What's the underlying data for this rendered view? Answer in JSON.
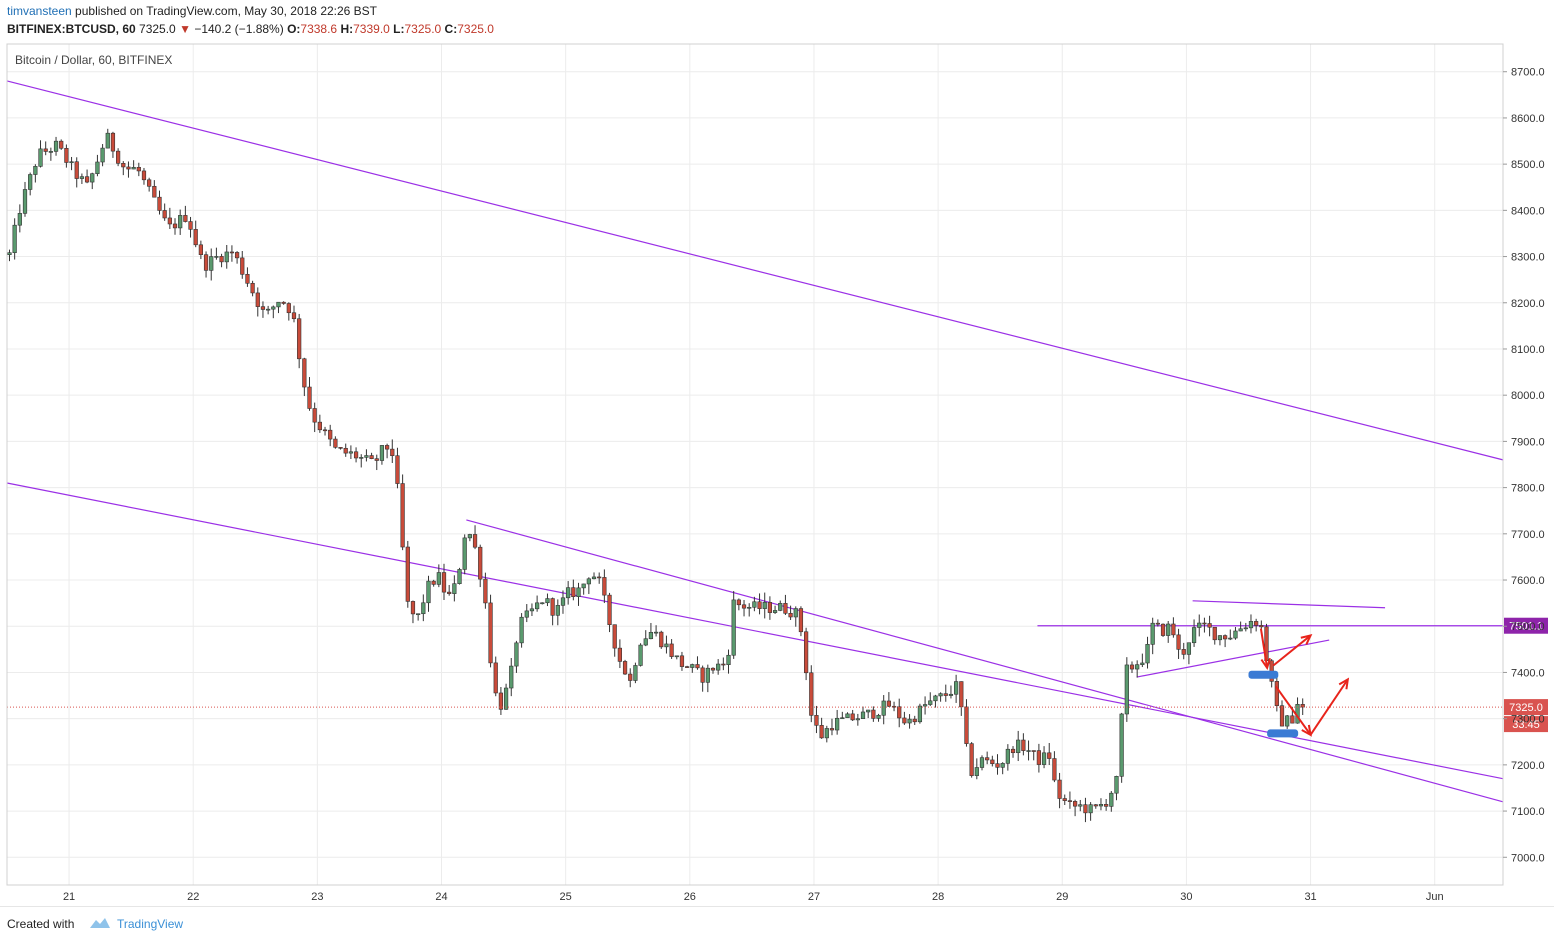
{
  "header": {
    "author": "timvansteen",
    "published_text": "published on TradingView.com, May 30, 2018 22:26 BST",
    "symbol": "BITFINEX:BTCUSD, 60",
    "last": "7325.0",
    "change_arrow": "▼",
    "change": "−140.2 (−1.88%)",
    "o_label": "O:",
    "o": "7338.6",
    "h_label": "H:",
    "h": "7339.0",
    "l_label": "L:",
    "l": "7325.0",
    "c_label": "C:",
    "c": "7325.0"
  },
  "footer": {
    "created_with": "Created with",
    "brand": "TradingView",
    "logo_icon": "tradingview-cloud-icon"
  },
  "colors": {
    "up": "#5a9a6e",
    "down": "#c94b3a",
    "trendline": "#9b30e6",
    "arrow": "#e8241b",
    "marker": "#3b7bd4",
    "price_tag": "#d9534f",
    "level_tag": "#8e24aa"
  },
  "chart_data": {
    "type": "candlestick",
    "title": "Bitcoin / Dollar, 60, BITFINEX",
    "xlabel": "",
    "ylabel": "",
    "ylim": [
      6940,
      8760
    ],
    "y_ticks": [
      7000,
      7100,
      7200,
      7300,
      7400,
      7500,
      7600,
      7700,
      7800,
      7900,
      8000,
      8100,
      8200,
      8300,
      8400,
      8500,
      8600,
      8700
    ],
    "y_tick_labels": [
      "7000.0",
      "7100.0",
      "7200.0",
      "7300.0",
      "7400.0",
      "7500.0",
      "7600.0",
      "7700.0",
      "7800.0",
      "7900.0",
      "8000.0",
      "8100.0",
      "8200.0",
      "8300.0",
      "8400.0",
      "8500.0",
      "8600.0",
      "8700.0"
    ],
    "x_range": [
      20.5,
      32.55
    ],
    "x_ticks": [
      21,
      22,
      23,
      24,
      25,
      26,
      27,
      28,
      29,
      30,
      31,
      32
    ],
    "x_tick_labels": [
      "21",
      "22",
      "23",
      "24",
      "25",
      "26",
      "27",
      "28",
      "29",
      "30",
      "31",
      "Jun"
    ],
    "grid": true,
    "last_price": 7325.0,
    "last_price_label": "7325.0",
    "countdown_label": "33:45",
    "level_price": 7501.1,
    "level_label": "7501.1",
    "anchors": [
      [
        20.5,
        8280
      ],
      [
        20.6,
        8400
      ],
      [
        20.75,
        8520
      ],
      [
        20.9,
        8540
      ],
      [
        21.05,
        8480
      ],
      [
        21.15,
        8450
      ],
      [
        21.3,
        8560
      ],
      [
        21.45,
        8490
      ],
      [
        21.55,
        8490
      ],
      [
        21.7,
        8410
      ],
      [
        21.8,
        8360
      ],
      [
        21.95,
        8390
      ],
      [
        22.08,
        8280
      ],
      [
        22.2,
        8300
      ],
      [
        22.32,
        8310
      ],
      [
        22.45,
        8240
      ],
      [
        22.58,
        8170
      ],
      [
        22.7,
        8210
      ],
      [
        22.8,
        8180
      ],
      [
        22.88,
        8040
      ],
      [
        22.95,
        7960
      ],
      [
        23.05,
        7920
      ],
      [
        23.15,
        7880
      ],
      [
        23.3,
        7870
      ],
      [
        23.45,
        7850
      ],
      [
        23.55,
        7890
      ],
      [
        23.62,
        7870
      ],
      [
        23.68,
        7690
      ],
      [
        23.72,
        7550
      ],
      [
        23.8,
        7510
      ],
      [
        23.88,
        7580
      ],
      [
        23.97,
        7610
      ],
      [
        24.05,
        7560
      ],
      [
        24.12,
        7590
      ],
      [
        24.2,
        7720
      ],
      [
        24.28,
        7660
      ],
      [
        24.35,
        7560
      ],
      [
        24.42,
        7360
      ],
      [
        24.48,
        7330
      ],
      [
        24.55,
        7380
      ],
      [
        24.62,
        7500
      ],
      [
        24.72,
        7530
      ],
      [
        24.82,
        7560
      ],
      [
        24.92,
        7530
      ],
      [
        25.02,
        7570
      ],
      [
        25.12,
        7580
      ],
      [
        25.2,
        7620
      ],
      [
        25.28,
        7590
      ],
      [
        25.35,
        7510
      ],
      [
        25.43,
        7430
      ],
      [
        25.52,
        7380
      ],
      [
        25.6,
        7470
      ],
      [
        25.7,
        7490
      ],
      [
        25.8,
        7460
      ],
      [
        25.92,
        7420
      ],
      [
        26.0,
        7410
      ],
      [
        26.1,
        7390
      ],
      [
        26.18,
        7410
      ],
      [
        26.3,
        7420
      ],
      [
        26.35,
        7550
      ],
      [
        26.5,
        7540
      ],
      [
        26.62,
        7540
      ],
      [
        26.75,
        7540
      ],
      [
        26.85,
        7530
      ],
      [
        26.92,
        7470
      ],
      [
        26.96,
        7320
      ],
      [
        27.05,
        7260
      ],
      [
        27.15,
        7290
      ],
      [
        27.3,
        7300
      ],
      [
        27.45,
        7310
      ],
      [
        27.6,
        7330
      ],
      [
        27.75,
        7290
      ],
      [
        27.9,
        7330
      ],
      [
        28.05,
        7350
      ],
      [
        28.15,
        7370
      ],
      [
        28.2,
        7300
      ],
      [
        28.25,
        7180
      ],
      [
        28.35,
        7210
      ],
      [
        28.5,
        7200
      ],
      [
        28.6,
        7240
      ],
      [
        28.7,
        7240
      ],
      [
        28.8,
        7210
      ],
      [
        28.9,
        7220
      ],
      [
        28.95,
        7140
      ],
      [
        29.05,
        7110
      ],
      [
        29.15,
        7110
      ],
      [
        29.25,
        7100
      ],
      [
        29.35,
        7120
      ],
      [
        29.45,
        7170
      ],
      [
        29.5,
        7400
      ],
      [
        29.6,
        7420
      ],
      [
        29.68,
        7440
      ],
      [
        29.72,
        7500
      ],
      [
        29.8,
        7490
      ],
      [
        29.88,
        7500
      ],
      [
        29.95,
        7430
      ],
      [
        30.05,
        7490
      ],
      [
        30.15,
        7500
      ],
      [
        30.25,
        7480
      ],
      [
        30.35,
        7480
      ],
      [
        30.45,
        7500
      ],
      [
        30.55,
        7515
      ],
      [
        30.62,
        7490
      ],
      [
        30.65,
        7420
      ],
      [
        30.68,
        7380
      ],
      [
        30.72,
        7320
      ],
      [
        30.78,
        7290
      ],
      [
        30.85,
        7300
      ],
      [
        30.9,
        7340
      ],
      [
        30.92,
        7325
      ]
    ],
    "trendlines": [
      {
        "points": [
          [
            20.5,
            8680
          ],
          [
            32.55,
            7860
          ]
        ]
      },
      {
        "points": [
          [
            20.5,
            7810
          ],
          [
            32.55,
            7170
          ]
        ]
      },
      {
        "points": [
          [
            24.2,
            7730
          ],
          [
            32.55,
            7120
          ]
        ]
      },
      {
        "points": [
          [
            29.6,
            7390
          ],
          [
            31.15,
            7470
          ]
        ]
      },
      {
        "points": [
          [
            30.05,
            7555
          ],
          [
            31.6,
            7540
          ]
        ]
      },
      {
        "points": [
          [
            28.8,
            7501.1
          ],
          [
            32.55,
            7501.1
          ]
        ]
      }
    ],
    "support_markers": [
      {
        "x1": 30.5,
        "x2": 30.74,
        "y": 7395
      },
      {
        "x1": 30.65,
        "x2": 30.9,
        "y": 7268
      }
    ],
    "arrows": [
      {
        "points": [
          [
            30.6,
            7495
          ],
          [
            30.65,
            7410
          ]
        ]
      },
      {
        "points": [
          [
            30.7,
            7415
          ],
          [
            31.0,
            7480
          ]
        ]
      },
      {
        "points": [
          [
            30.72,
            7370
          ],
          [
            31.0,
            7265
          ]
        ]
      },
      {
        "points": [
          [
            31.0,
            7265
          ],
          [
            31.3,
            7385
          ]
        ]
      }
    ]
  }
}
